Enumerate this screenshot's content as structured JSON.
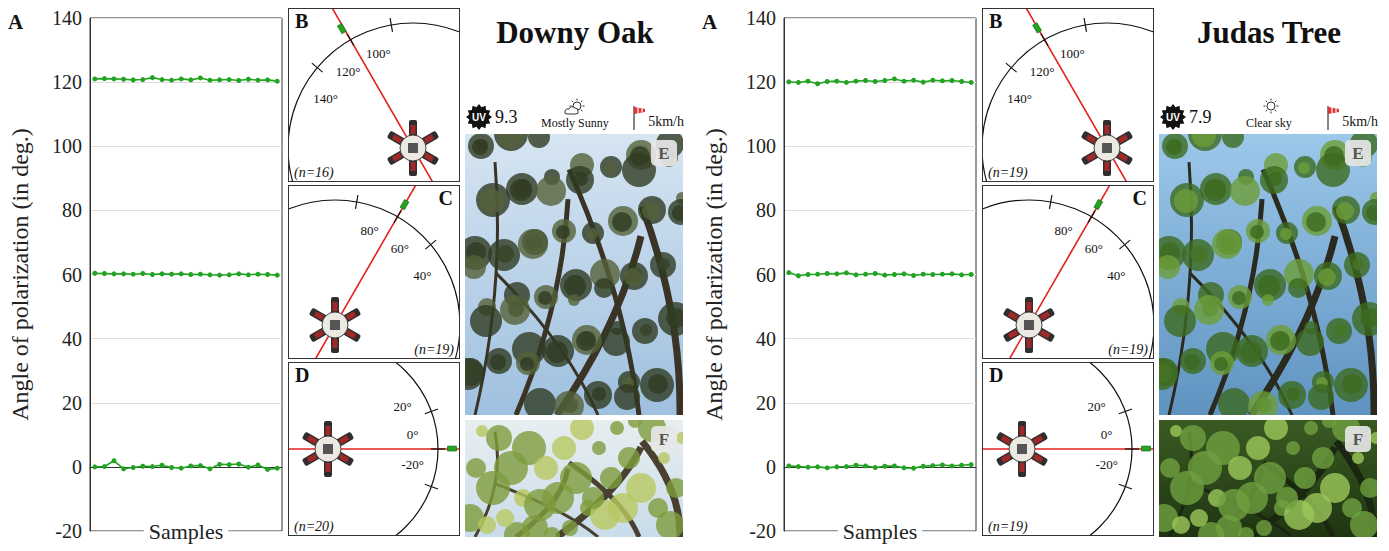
{
  "chart_data": [
    {
      "type": "line",
      "letter": "A",
      "ylabel": "Angle of polarization (in deg.)",
      "xlabel": "Samples",
      "categories": [
        null,
        null,
        null,
        null,
        null,
        null,
        null,
        null,
        null,
        null,
        null,
        null,
        null,
        null,
        null,
        null,
        null,
        null,
        null,
        null
      ],
      "ylim": [
        -20,
        140
      ],
      "yticks": [
        -20,
        0,
        20,
        40,
        60,
        80,
        100,
        120,
        140
      ],
      "grid": true,
      "tick_labels": "y",
      "series": [
        {
          "color": "#22a322",
          "marker": "circle",
          "line_style": "solid",
          "values": [
            121.0,
            121.1,
            121.0,
            120.9,
            120.7,
            120.8,
            121.4,
            120.8,
            120.6,
            121.0,
            120.7,
            121.3,
            120.6,
            120.7,
            120.8,
            120.5,
            120.9,
            120.6,
            120.7,
            120.3
          ]
        },
        {
          "color": "#22a322",
          "marker": "circle",
          "line_style": "solid",
          "values": [
            60.4,
            60.3,
            60.2,
            60.2,
            60.1,
            60.3,
            60.0,
            60.2,
            60.1,
            60.2,
            60.0,
            60.1,
            59.9,
            59.8,
            59.9,
            60.2,
            59.9,
            60.1,
            60.0,
            59.8
          ]
        },
        {
          "color": "#22a322",
          "marker": "circle",
          "line_style": "solid",
          "values": [
            0.0,
            0.1,
            1.9,
            -0.6,
            -0.2,
            0.2,
            0.1,
            0.5,
            -0.2,
            -0.4,
            0.3,
            0.4,
            -0.6,
            0.8,
            0.7,
            0.9,
            -0.1,
            0.6,
            -0.8,
            -0.4
          ]
        }
      ]
    },
    {
      "type": "line",
      "letter": "A",
      "ylabel": "Angle of polarization (in deg.)",
      "xlabel": "Samples",
      "categories": [
        null,
        null,
        null,
        null,
        null,
        null,
        null,
        null,
        null,
        null,
        null,
        null,
        null,
        null,
        null,
        null,
        null,
        null,
        null,
        null
      ],
      "ylim": [
        -20,
        140
      ],
      "yticks": [
        -20,
        0,
        20,
        40,
        60,
        80,
        100,
        120,
        140
      ],
      "grid": true,
      "tick_labels": "y",
      "series": [
        {
          "color": "#22a322",
          "marker": "circle",
          "line_style": "solid",
          "values": [
            120.1,
            119.9,
            120.3,
            119.5,
            120.2,
            120.3,
            119.9,
            120.3,
            120.5,
            120.2,
            120.5,
            121.0,
            120.3,
            120.6,
            120.0,
            120.6,
            120.4,
            120.5,
            120.2,
            119.9
          ]
        },
        {
          "color": "#22a322",
          "marker": "circle",
          "line_style": "solid",
          "values": [
            60.6,
            59.6,
            60.0,
            60.1,
            60.3,
            60.2,
            60.5,
            59.9,
            60.1,
            60.3,
            59.8,
            60.0,
            60.2,
            59.7,
            60.1,
            60.0,
            60.1,
            60.2,
            59.9,
            60.0
          ]
        },
        {
          "color": "#22a322",
          "marker": "circle",
          "line_style": "solid",
          "values": [
            0.3,
            0.1,
            -0.1,
            0.0,
            -0.3,
            0.0,
            0.1,
            0.5,
            0.3,
            -0.2,
            0.2,
            0.3,
            -0.3,
            -0.4,
            0.2,
            0.4,
            0.6,
            0.3,
            0.5,
            0.7
          ]
        }
      ]
    }
  ],
  "panels": [
    {
      "title": "Downy Oak",
      "weather": {
        "uv_label": "UV",
        "uv": 9.3,
        "sky": "Mostly Sunny",
        "wind": "5km/h"
      },
      "dials": [
        {
          "letter": "B",
          "n": "(n=16)",
          "reference": 120,
          "mean": 120.8,
          "error": 0.4,
          "color": "#22a322",
          "ticks": [
            {
              "value": 100,
              "label": "100°"
            },
            {
              "value": 120,
              "label": "120°"
            },
            {
              "value": 140,
              "label": "140°"
            }
          ]
        },
        {
          "letter": "C",
          "n": "(n=19)",
          "reference": 60,
          "mean": 60.0,
          "error": 0.2,
          "color": "#22a322",
          "ticks": [
            {
              "value": 80,
              "label": "80°"
            },
            {
              "value": 60,
              "label": "60°"
            },
            {
              "value": 40,
              "label": "40°"
            }
          ]
        },
        {
          "letter": "D",
          "n": "(n=20)",
          "reference": 0,
          "mean": 0.2,
          "error": 0.8,
          "color": "#22a322",
          "ticks": [
            {
              "value": 20,
              "label": "20°"
            },
            {
              "value": 0,
              "label": "0°"
            },
            {
              "value": -20,
              "label": "-20°"
            }
          ]
        }
      ],
      "photos": [
        {
          "letter": "E"
        },
        {
          "letter": "F"
        }
      ]
    },
    {
      "title": "Judas Tree",
      "weather": {
        "uv_label": "UV",
        "uv": 7.9,
        "sky": "Clear sky",
        "wind": "5km/h"
      },
      "dials": [
        {
          "letter": "B",
          "n": "(n=19)",
          "reference": 120,
          "mean": 120.2,
          "error": 0.4,
          "color": "#22a322",
          "ticks": [
            {
              "value": 100,
              "label": "100°"
            },
            {
              "value": 120,
              "label": "120°"
            },
            {
              "value": 140,
              "label": "140°"
            }
          ]
        },
        {
          "letter": "C",
          "n": "(n=19)",
          "reference": 60,
          "mean": 60.1,
          "error": 0.3,
          "color": "#22a322",
          "ticks": [
            {
              "value": 80,
              "label": "80°"
            },
            {
              "value": 60,
              "label": "60°"
            },
            {
              "value": 40,
              "label": "40°"
            }
          ]
        },
        {
          "letter": "D",
          "n": "(n=19)",
          "reference": 0,
          "mean": 0.2,
          "error": 0.4,
          "color": "#22a322",
          "ticks": [
            {
              "value": 20,
              "label": "20°"
            },
            {
              "value": 0,
              "label": "0°"
            },
            {
              "value": -20,
              "label": "-20°"
            }
          ]
        }
      ],
      "photos": [
        {
          "letter": "E"
        },
        {
          "letter": "F"
        }
      ]
    }
  ]
}
